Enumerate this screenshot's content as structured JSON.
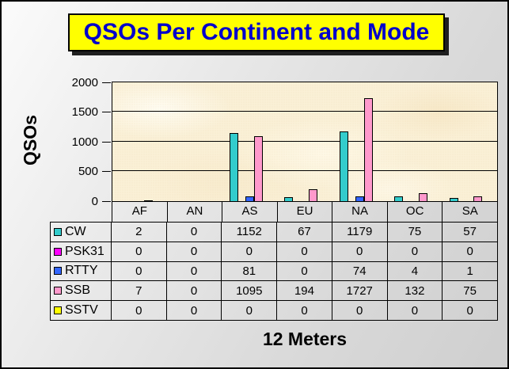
{
  "title": "QSOs Per Continent and Mode",
  "colors": {
    "title_text": "#0000CC",
    "title_bg": "#FFFF00",
    "plot_bg": "#FAF0D6",
    "series_cw": "#33CCCC",
    "series_psk31": "#FF00FF",
    "series_rtty": "#3366FF",
    "series_ssb": "#FF99CC",
    "series_sstv": "#FFFF00"
  },
  "chart_data": {
    "type": "bar",
    "title": "QSOs Per Continent and Mode",
    "xlabel": "12 Meters",
    "ylabel": "QSOs",
    "categories": [
      "AF",
      "AN",
      "AS",
      "EU",
      "NA",
      "OC",
      "SA"
    ],
    "series": [
      {
        "name": "CW",
        "color": "#33CCCC",
        "values": [
          2,
          0,
          1152,
          67,
          1179,
          75,
          57
        ]
      },
      {
        "name": "PSK31",
        "color": "#FF00FF",
        "values": [
          0,
          0,
          0,
          0,
          0,
          0,
          0
        ]
      },
      {
        "name": "RTTY",
        "color": "#3366FF",
        "values": [
          0,
          0,
          81,
          0,
          74,
          4,
          1
        ]
      },
      {
        "name": "SSB",
        "color": "#FF99CC",
        "values": [
          7,
          0,
          1095,
          194,
          1727,
          132,
          75
        ]
      },
      {
        "name": "SSTV",
        "color": "#FFFF00",
        "values": [
          0,
          0,
          0,
          0,
          0,
          0,
          0
        ]
      }
    ],
    "ylim": [
      0,
      2000
    ],
    "yticks": [
      0,
      500,
      1000,
      1500,
      2000
    ],
    "grid": "horizontal",
    "legend_position": "table-left-column",
    "data_table_shown": true
  }
}
